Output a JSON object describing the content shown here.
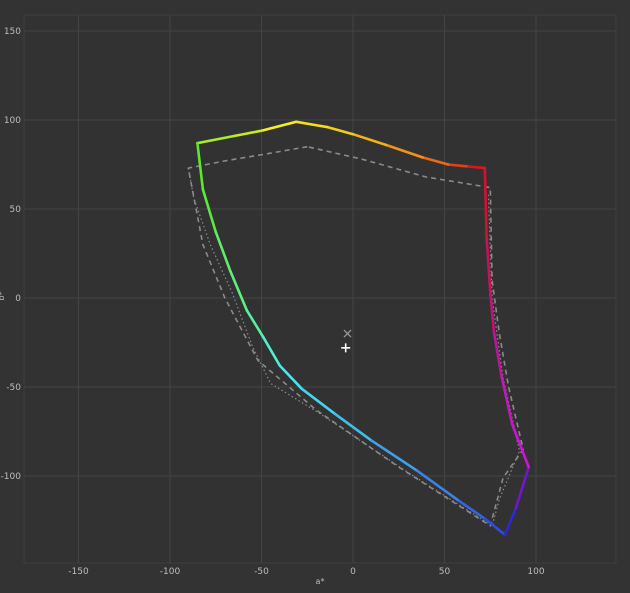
{
  "chart_data": {
    "type": "line",
    "title": "",
    "xlabel": "a*",
    "ylabel": "b*",
    "xlim": [
      -185,
      144
    ],
    "ylim": [
      -148,
      166
    ],
    "xticks": [
      "-150",
      "-100",
      "-50",
      "0",
      "50",
      "100"
    ],
    "yticks": [
      "150",
      "100",
      "50",
      "0",
      "-50",
      "-100"
    ],
    "grid": true,
    "colors": {
      "background": "#333333",
      "plot_area": "#323232",
      "grid": "#444444",
      "reference_gamut": "#8a8a8a",
      "marker": "#ffffff",
      "x_marker": "#9a9a9a"
    },
    "series": [
      {
        "style": "gradient-solid",
        "points": [
          [
            -31,
            99
          ],
          [
            -50,
            94
          ],
          [
            -65,
            91
          ],
          [
            -85,
            87
          ],
          [
            -82,
            61
          ],
          [
            -75,
            37
          ],
          [
            -67,
            15
          ],
          [
            -58,
            -7
          ],
          [
            -49,
            -22
          ],
          [
            -40,
            -38
          ],
          [
            -28,
            -51
          ],
          [
            -10,
            -65
          ],
          [
            10,
            -80
          ],
          [
            35,
            -97
          ],
          [
            58,
            -114
          ],
          [
            72,
            -124
          ],
          [
            83,
            -133
          ],
          [
            89,
            -118
          ],
          [
            96,
            -95
          ],
          [
            87,
            -71
          ],
          [
            81,
            -43
          ],
          [
            77,
            -19
          ],
          [
            75,
            3
          ],
          [
            73,
            34
          ],
          [
            72,
            73
          ],
          [
            62,
            74
          ],
          [
            52,
            75
          ],
          [
            38,
            79
          ],
          [
            18,
            86
          ],
          [
            0,
            92
          ],
          [
            -14,
            96
          ],
          [
            -31,
            99
          ]
        ],
        "colors": [
          "#f4ef24",
          "#c4ec22",
          "#a8ee26",
          "#5de82a",
          "#5ee83c",
          "#62eb66",
          "#5ef07f",
          "#57f0a4",
          "#4ff1cd",
          "#47e6ee",
          "#45d4ee",
          "#44bcea",
          "#3f9fe7",
          "#3a82e3",
          "#3265df",
          "#2b4ddb",
          "#2f25d9",
          "#7017cf",
          "#cd14d6",
          "#c11ab8",
          "#b8179a",
          "#be1478",
          "#c81258",
          "#d01235",
          "#d7181d",
          "#e53f18",
          "#ee6818",
          "#f09418",
          "#f3b019",
          "#f3cb1b",
          "#f4e01f",
          "#f4ef24"
        ]
      },
      {
        "style": "dashed",
        "points": [
          [
            -25,
            85
          ],
          [
            -47,
            81
          ],
          [
            -70,
            77
          ],
          [
            -90,
            73
          ],
          [
            -82,
            30
          ],
          [
            -70,
            0
          ],
          [
            -52,
            -35
          ],
          [
            -20,
            -63
          ],
          [
            25,
            -95
          ],
          [
            75,
            -128
          ],
          [
            82,
            -101
          ],
          [
            93,
            -85
          ],
          [
            85,
            -50
          ],
          [
            80,
            -20
          ],
          [
            76,
            10
          ],
          [
            75,
            62
          ],
          [
            40,
            68
          ],
          [
            5,
            78
          ],
          [
            -25,
            85
          ]
        ]
      },
      {
        "style": "dotted",
        "points": [
          [
            -90,
            73
          ],
          [
            -87,
            56
          ],
          [
            -78,
            30
          ],
          [
            -66,
            3
          ],
          [
            -55,
            -27
          ],
          [
            -45,
            -48
          ],
          [
            -18,
            -65
          ],
          [
            30,
            -98
          ],
          [
            76,
            -128
          ],
          [
            80,
            -113
          ],
          [
            91,
            -86
          ],
          [
            82,
            -45
          ],
          [
            76,
            0
          ],
          [
            74,
            58
          ]
        ]
      }
    ],
    "markers": [
      {
        "symbol": "×",
        "a": -3,
        "b": -20
      },
      {
        "symbol": "+",
        "a": -4,
        "b": -28
      }
    ]
  }
}
